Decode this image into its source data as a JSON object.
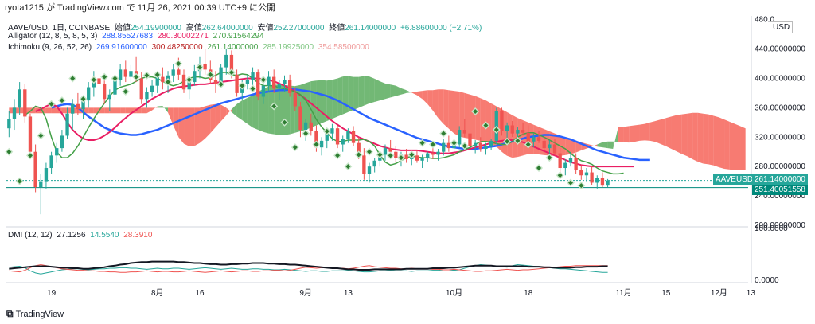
{
  "header": {
    "text": "ryota1215 が TradingView.com で 11月 26, 2021 00:39 UTC+9 に公開"
  },
  "legend": {
    "symbol": "AAVE/USD, 1日, COINBASE",
    "open_label": "始値",
    "open": "254.19900000",
    "high_label": "高値",
    "high": "262.64000000",
    "low_label": "安値",
    "low": "252.27000000",
    "close_label": "終値",
    "close": "261.14000000",
    "change": "+6.88600000 (+2.71%)",
    "alligator_label": "Alligator (12, 8, 5, 8, 5, 3)",
    "alligator_jaw": "288.85527683",
    "alligator_teeth": "280.30002271",
    "alligator_lips": "270.91564294",
    "ichimoku_label": "Ichimoku (9, 26, 52, 26)",
    "ichimoku_conversion": "269.91600000",
    "ichimoku_base": "300.48250000",
    "ichimoku_lagging": "261.14000000",
    "ichimoku_lead1": "285.19925000",
    "ichimoku_lead2": "354.58500000",
    "dmi_label": "DMI (12, 12)",
    "dmi_adx": "27.1256",
    "dmi_plus": "14.5540",
    "dmi_minus": "28.3910"
  },
  "price_axis": {
    "currency": "USD",
    "ticks": [
      "480.0",
      "440.00000000",
      "400.00000000",
      "360.00000000",
      "320.00000000",
      "280.00000000",
      "240.00000000",
      "200.00000000"
    ],
    "current_label": "AAVEUSD",
    "current_price": "261.14000000",
    "other_price": "251.40051558"
  },
  "dmi_axis": {
    "ticks": [
      "100.0000",
      "0.0000"
    ]
  },
  "time_axis": {
    "ticks": [
      "19",
      "8月",
      "16",
      "9月",
      "13",
      "10月",
      "18",
      "11月",
      "15",
      "12月",
      "13"
    ]
  },
  "footer": {
    "brand": "TradingView"
  },
  "colors": {
    "up": "#26a69a",
    "down": "#ef5350",
    "jaw": "#2962ff",
    "teeth": "#e91e63",
    "lips": "#43a047",
    "cloud_up": "#43a047",
    "cloud_down": "#f44336",
    "conversion": "#2962ff",
    "base": "#b71c1c",
    "dmi_adx": "#131722",
    "dmi_plus": "#26a69a",
    "dmi_minus": "#ef5350",
    "tag": "#26a69a"
  },
  "chart_data": {
    "type": "candlestick",
    "ylim": [
      200,
      485
    ],
    "x_start_date": "2021-07-12",
    "candles": [
      [
        332,
        355,
        320,
        345
      ],
      [
        345,
        372,
        330,
        360
      ],
      [
        360,
        395,
        350,
        385
      ],
      [
        385,
        392,
        340,
        348
      ],
      [
        348,
        352,
        290,
        300
      ],
      [
        300,
        310,
        245,
        252
      ],
      [
        252,
        270,
        215,
        260
      ],
      [
        260,
        285,
        250,
        278
      ],
      [
        278,
        300,
        270,
        295
      ],
      [
        295,
        312,
        285,
        305
      ],
      [
        305,
        330,
        300,
        322
      ],
      [
        322,
        360,
        318,
        352
      ],
      [
        352,
        372,
        330,
        365
      ],
      [
        365,
        380,
        350,
        358
      ],
      [
        358,
        375,
        345,
        370
      ],
      [
        370,
        395,
        360,
        388
      ],
      [
        388,
        410,
        375,
        400
      ],
      [
        400,
        415,
        385,
        392
      ],
      [
        392,
        400,
        365,
        372
      ],
      [
        372,
        385,
        355,
        378
      ],
      [
        378,
        405,
        370,
        398
      ],
      [
        398,
        420,
        390,
        412
      ],
      [
        412,
        425,
        395,
        402
      ],
      [
        402,
        418,
        390,
        410
      ],
      [
        410,
        430,
        395,
        400
      ],
      [
        400,
        408,
        365,
        372
      ],
      [
        372,
        388,
        360,
        382
      ],
      [
        382,
        398,
        375,
        390
      ],
      [
        390,
        408,
        380,
        402
      ],
      [
        402,
        415,
        385,
        395
      ],
      [
        395,
        410,
        380,
        404
      ],
      [
        404,
        420,
        395,
        412
      ],
      [
        412,
        428,
        398,
        405
      ],
      [
        405,
        412,
        380,
        385
      ],
      [
        385,
        400,
        372,
        395
      ],
      [
        395,
        418,
        390,
        410
      ],
      [
        410,
        430,
        400,
        420
      ],
      [
        420,
        440,
        405,
        412
      ],
      [
        412,
        425,
        392,
        398
      ],
      [
        398,
        410,
        380,
        392
      ],
      [
        392,
        420,
        388,
        415
      ],
      [
        415,
        440,
        405,
        432
      ],
      [
        432,
        438,
        400,
        405
      ],
      [
        405,
        412,
        375,
        380
      ],
      [
        380,
        398,
        370,
        392
      ],
      [
        392,
        405,
        385,
        398
      ],
      [
        398,
        415,
        390,
        408
      ],
      [
        408,
        412,
        370,
        375
      ],
      [
        375,
        395,
        365,
        390
      ],
      [
        390,
        410,
        382,
        402
      ],
      [
        402,
        412,
        380,
        386
      ],
      [
        386,
        398,
        370,
        392
      ],
      [
        392,
        404,
        382,
        398
      ],
      [
        398,
        405,
        375,
        380
      ],
      [
        380,
        388,
        355,
        362
      ],
      [
        362,
        368,
        320,
        330
      ],
      [
        330,
        345,
        315,
        340
      ],
      [
        340,
        352,
        322,
        328
      ],
      [
        328,
        336,
        300,
        306
      ],
      [
        306,
        320,
        295,
        315
      ],
      [
        315,
        330,
        305,
        325
      ],
      [
        325,
        338,
        315,
        332
      ],
      [
        332,
        336,
        305,
        310
      ],
      [
        310,
        322,
        300,
        318
      ],
      [
        318,
        332,
        312,
        328
      ],
      [
        328,
        335,
        308,
        312
      ],
      [
        312,
        320,
        290,
        295
      ],
      [
        295,
        305,
        262,
        270
      ],
      [
        270,
        285,
        258,
        280
      ],
      [
        280,
        292,
        272,
        288
      ],
      [
        288,
        300,
        280,
        296
      ],
      [
        296,
        310,
        288,
        305
      ],
      [
        305,
        316,
        295,
        300
      ],
      [
        300,
        308,
        285,
        292
      ],
      [
        292,
        300,
        280,
        296
      ],
      [
        296,
        304,
        285,
        290
      ],
      [
        290,
        298,
        282,
        295
      ],
      [
        295,
        302,
        285,
        288
      ],
      [
        288,
        296,
        278,
        292
      ],
      [
        292,
        300,
        286,
        298
      ],
      [
        298,
        305,
        290,
        296
      ],
      [
        296,
        304,
        288,
        300
      ],
      [
        300,
        318,
        295,
        312
      ],
      [
        312,
        322,
        300,
        305
      ],
      [
        305,
        312,
        298,
        310
      ],
      [
        310,
        335,
        306,
        330
      ],
      [
        330,
        345,
        320,
        325
      ],
      [
        325,
        332,
        305,
        308
      ],
      [
        308,
        316,
        298,
        312
      ],
      [
        312,
        320,
        300,
        304
      ],
      [
        304,
        312,
        296,
        308
      ],
      [
        308,
        318,
        302,
        315
      ],
      [
        315,
        360,
        310,
        355
      ],
      [
        355,
        360,
        322,
        328
      ],
      [
        328,
        340,
        318,
        336
      ],
      [
        336,
        342,
        320,
        325
      ],
      [
        325,
        334,
        315,
        330
      ],
      [
        330,
        340,
        322,
        326
      ],
      [
        326,
        336,
        310,
        314
      ],
      [
        314,
        325,
        306,
        320
      ],
      [
        320,
        328,
        312,
        315
      ],
      [
        315,
        322,
        300,
        305
      ],
      [
        305,
        316,
        292,
        310
      ],
      [
        310,
        318,
        295,
        298
      ],
      [
        298,
        305,
        272,
        278
      ],
      [
        278,
        290,
        268,
        285
      ],
      [
        285,
        300,
        280,
        292
      ],
      [
        292,
        298,
        270,
        275
      ],
      [
        275,
        282,
        262,
        268
      ],
      [
        268,
        278,
        260,
        272
      ],
      [
        272,
        280,
        255,
        258
      ],
      [
        258,
        268,
        250,
        264
      ],
      [
        264,
        272,
        252,
        254
      ],
      [
        254,
        263,
        252,
        261
      ]
    ],
    "jaw": [
      360,
      362,
      364,
      365,
      364,
      360,
      354,
      348,
      343,
      338,
      333,
      330,
      327,
      325,
      324,
      323,
      323,
      324,
      326,
      328,
      330,
      333,
      336,
      339,
      342,
      345,
      348,
      351,
      354,
      357,
      360,
      363,
      366,
      368,
      370,
      372,
      374,
      376,
      378,
      380,
      381,
      382,
      383,
      384,
      384,
      385,
      385,
      384,
      383,
      382,
      380,
      378,
      376,
      373,
      370,
      366,
      362,
      358,
      354,
      350,
      346,
      343,
      340,
      337,
      334,
      331,
      328,
      325,
      322,
      319,
      317,
      315,
      313,
      311,
      309,
      307,
      306,
      305,
      304,
      304,
      304,
      305,
      306,
      307,
      308,
      310,
      312,
      314,
      316,
      318,
      320,
      321,
      322,
      323,
      323,
      322,
      321,
      319,
      317,
      314,
      311,
      308,
      305,
      302,
      300,
      298,
      296,
      294,
      292,
      291,
      290,
      289,
      289,
      289
    ],
    "teeth": [
      355,
      358,
      362,
      365,
      362,
      352,
      340,
      330,
      323,
      318,
      316,
      316,
      318,
      322,
      327,
      333,
      340,
      346,
      352,
      357,
      362,
      367,
      372,
      376,
      380,
      383,
      386,
      388,
      389,
      390,
      391,
      392,
      392,
      393,
      394,
      395,
      396,
      397,
      398,
      399,
      400,
      400,
      400,
      399,
      398,
      396,
      393,
      390,
      386,
      382,
      377,
      372,
      366,
      360,
      354,
      348,
      342,
      337,
      332,
      328,
      324,
      320,
      317,
      314,
      311,
      308,
      306,
      304,
      303,
      302,
      302,
      302,
      302,
      301,
      300,
      299,
      298,
      298,
      298,
      299,
      300,
      302,
      304,
      306,
      308,
      310,
      312,
      314,
      315,
      316,
      316,
      315,
      313,
      310,
      307,
      304,
      301,
      298,
      295,
      292,
      289,
      286,
      284,
      282,
      281,
      280,
      280,
      280,
      280,
      280,
      280,
      280,
      280,
      280
    ],
    "lips": [
      350,
      355,
      362,
      360,
      345,
      320,
      300,
      292,
      292,
      298,
      308,
      320,
      333,
      345,
      356,
      366,
      376,
      384,
      388,
      390,
      392,
      396,
      400,
      402,
      402,
      400,
      396,
      392,
      390,
      392,
      396,
      400,
      402,
      402,
      400,
      401,
      404,
      408,
      408,
      405,
      404,
      406,
      405,
      400,
      394,
      390,
      390,
      390,
      387,
      386,
      384,
      382,
      378,
      370,
      358,
      344,
      334,
      326,
      318,
      314,
      314,
      316,
      316,
      316,
      317,
      314,
      308,
      296,
      286,
      282,
      284,
      288,
      292,
      294,
      293,
      292,
      292,
      291,
      291,
      292,
      294,
      296,
      300,
      303,
      306,
      310,
      314,
      314,
      313,
      311,
      310,
      310,
      314,
      320,
      324,
      326,
      326,
      323,
      320,
      316,
      312,
      308,
      304,
      298,
      292,
      288,
      286,
      283,
      278,
      274,
      272,
      270,
      270,
      271
    ],
    "dmi": {
      "adx": [
        22,
        23,
        24,
        25,
        26,
        27,
        27,
        27,
        26,
        25,
        24,
        24,
        23,
        23,
        22,
        22,
        23,
        24,
        25,
        27,
        28,
        30,
        31,
        33,
        34,
        35,
        35,
        36,
        36,
        36,
        36,
        36,
        35,
        35,
        34,
        33,
        33,
        32,
        31,
        31,
        30,
        30,
        31,
        31,
        32,
        32,
        33,
        33,
        33,
        32,
        32,
        31,
        31,
        30,
        30,
        29,
        28,
        27,
        26,
        25,
        24,
        23,
        23,
        22,
        21,
        21,
        20,
        20,
        20,
        21,
        21,
        21,
        21,
        21,
        21,
        22,
        22,
        22,
        22,
        22,
        23,
        23,
        23,
        24,
        24,
        25,
        26,
        27,
        28,
        28,
        28,
        28,
        27,
        27,
        27,
        27,
        27,
        27,
        26,
        26,
        26,
        25,
        25,
        24,
        24,
        24,
        24,
        25,
        25,
        26,
        26,
        26,
        27,
        27
      ],
      "plus": [
        25,
        26,
        27,
        24,
        18,
        14,
        12,
        14,
        16,
        18,
        20,
        21,
        22,
        22,
        21,
        20,
        21,
        22,
        22,
        23,
        23,
        24,
        24,
        23,
        23,
        22,
        21,
        22,
        23,
        22,
        22,
        23,
        23,
        22,
        21,
        22,
        23,
        24,
        23,
        22,
        21,
        22,
        23,
        22,
        21,
        21,
        22,
        22,
        21,
        21,
        20,
        20,
        21,
        20,
        19,
        18,
        17,
        18,
        18,
        17,
        17,
        18,
        18,
        18,
        19,
        18,
        17,
        16,
        16,
        17,
        18,
        18,
        19,
        18,
        18,
        18,
        17,
        18,
        18,
        18,
        19,
        19,
        20,
        20,
        19,
        20,
        23,
        26,
        28,
        30,
        29,
        28,
        27,
        26,
        25,
        28,
        30,
        29,
        28,
        27,
        26,
        25,
        24,
        23,
        22,
        22,
        21,
        20,
        19,
        18,
        17,
        16,
        15,
        15
      ],
      "minus": [
        18,
        17,
        16,
        19,
        24,
        28,
        30,
        28,
        26,
        24,
        22,
        21,
        20,
        19,
        19,
        18,
        18,
        17,
        17,
        16,
        16,
        15,
        15,
        16,
        16,
        17,
        18,
        17,
        16,
        17,
        17,
        16,
        16,
        17,
        18,
        17,
        16,
        15,
        16,
        17,
        18,
        17,
        16,
        17,
        18,
        18,
        17,
        17,
        18,
        18,
        19,
        19,
        18,
        19,
        21,
        23,
        25,
        24,
        23,
        24,
        24,
        23,
        23,
        23,
        22,
        23,
        25,
        27,
        28,
        26,
        25,
        24,
        23,
        23,
        22,
        22,
        23,
        22,
        22,
        22,
        21,
        21,
        20,
        20,
        21,
        20,
        19,
        18,
        17,
        17,
        18,
        18,
        19,
        20,
        21,
        20,
        19,
        20,
        20,
        21,
        22,
        23,
        24,
        25,
        26,
        27,
        27,
        28,
        28,
        28,
        28,
        28,
        28,
        28
      ]
    }
  }
}
